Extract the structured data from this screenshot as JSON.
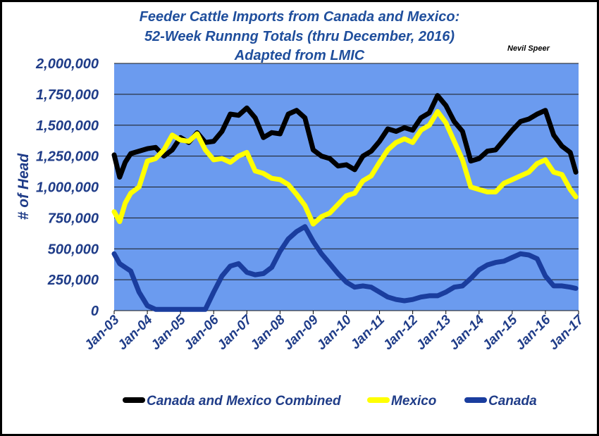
{
  "chart_data": {
    "type": "line",
    "title": [
      "Feeder Cattle Imports from Canada and Mexico:",
      "52-Week Runnng Totals (thru December, 2016)",
      "Adapted from LMIC"
    ],
    "author": "Nevil Speer",
    "ylabel": "# of Head",
    "xlabel": "",
    "ylim": [
      0,
      2000000
    ],
    "yticks": [
      "0",
      "250,000",
      "500,000",
      "750,000",
      "1,000,000",
      "1,250,000",
      "1,500,000",
      "1,750,000",
      "2,000,000"
    ],
    "xlim": [
      2003,
      2017
    ],
    "xticks": [
      "Jan-03",
      "Jan-04",
      "Jan-05",
      "Jan-06",
      "Jan-07",
      "Jan-08",
      "Jan-09",
      "Jan-10",
      "Jan-11",
      "Jan-12",
      "Jan-13",
      "Jan-14",
      "Jan-15",
      "Jan-16",
      "Jan-17"
    ],
    "grid": true,
    "legend_position": "bottom",
    "colors": {
      "plot_background": "#6b9bef",
      "grid": "#1a1a1a",
      "text": "#1f3c88",
      "title": "#1f4e9c"
    },
    "series": [
      {
        "name": "Canada and Mexico Combined",
        "color": "#000000",
        "x": [
          "Jan-03",
          "Mar-03",
          "May-03",
          "Jul-03",
          "Oct-03",
          "Jan-04",
          "Apr-04",
          "Jul-04",
          "Oct-04",
          "Jan-05",
          "Apr-05",
          "Jul-05",
          "Oct-05",
          "Jan-06",
          "Apr-06",
          "Jul-06",
          "Oct-06",
          "Jan-07",
          "Apr-07",
          "Jul-07",
          "Oct-07",
          "Jan-08",
          "Apr-08",
          "Jul-08",
          "Oct-08",
          "Jan-09",
          "Apr-09",
          "Jul-09",
          "Oct-09",
          "Jan-10",
          "Apr-10",
          "Jul-10",
          "Oct-10",
          "Jan-11",
          "Apr-11",
          "Jul-11",
          "Oct-11",
          "Jan-12",
          "Apr-12",
          "Jul-12",
          "Oct-12",
          "Jan-13",
          "Apr-13",
          "Jul-13",
          "Oct-13",
          "Jan-14",
          "Apr-14",
          "Jul-14",
          "Oct-14",
          "Jan-15",
          "Apr-15",
          "Jul-15",
          "Oct-15",
          "Jan-16",
          "Apr-16",
          "Jul-16",
          "Oct-16",
          "Dec-16"
        ],
        "values": [
          1260000,
          1080000,
          1200000,
          1270000,
          1290000,
          1310000,
          1320000,
          1250000,
          1300000,
          1400000,
          1360000,
          1440000,
          1360000,
          1370000,
          1450000,
          1590000,
          1580000,
          1640000,
          1560000,
          1400000,
          1440000,
          1430000,
          1590000,
          1620000,
          1560000,
          1300000,
          1250000,
          1230000,
          1170000,
          1180000,
          1140000,
          1250000,
          1290000,
          1370000,
          1470000,
          1450000,
          1480000,
          1460000,
          1560000,
          1600000,
          1740000,
          1660000,
          1530000,
          1450000,
          1210000,
          1230000,
          1290000,
          1300000,
          1380000,
          1460000,
          1530000,
          1550000,
          1590000,
          1620000,
          1420000,
          1330000,
          1280000,
          1120000
        ]
      },
      {
        "name": "Mexico",
        "color": "#ffff00",
        "x": [
          "Jan-03",
          "Mar-03",
          "May-03",
          "Jul-03",
          "Oct-03",
          "Jan-04",
          "Apr-04",
          "Jul-04",
          "Oct-04",
          "Jan-05",
          "Apr-05",
          "Jul-05",
          "Oct-05",
          "Jan-06",
          "Apr-06",
          "Jul-06",
          "Oct-06",
          "Jan-07",
          "Apr-07",
          "Jul-07",
          "Oct-07",
          "Jan-08",
          "Apr-08",
          "Jul-08",
          "Oct-08",
          "Jan-09",
          "Apr-09",
          "Jul-09",
          "Oct-09",
          "Jan-10",
          "Apr-10",
          "Jul-10",
          "Oct-10",
          "Jan-11",
          "Apr-11",
          "Jul-11",
          "Oct-11",
          "Jan-12",
          "Apr-12",
          "Jul-12",
          "Oct-12",
          "Jan-13",
          "Apr-13",
          "Jul-13",
          "Oct-13",
          "Jan-14",
          "Apr-14",
          "Jul-14",
          "Oct-14",
          "Jan-15",
          "Apr-15",
          "Jul-15",
          "Oct-15",
          "Jan-16",
          "Apr-16",
          "Jul-16",
          "Oct-16",
          "Dec-16"
        ],
        "values": [
          800000,
          720000,
          870000,
          950000,
          1000000,
          1210000,
          1230000,
          1300000,
          1420000,
          1380000,
          1370000,
          1430000,
          1300000,
          1220000,
          1230000,
          1200000,
          1250000,
          1280000,
          1130000,
          1110000,
          1070000,
          1060000,
          1020000,
          940000,
          850000,
          700000,
          760000,
          790000,
          860000,
          930000,
          950000,
          1050000,
          1090000,
          1200000,
          1300000,
          1360000,
          1390000,
          1360000,
          1460000,
          1500000,
          1610000,
          1520000,
          1370000,
          1220000,
          1000000,
          980000,
          960000,
          960000,
          1030000,
          1060000,
          1090000,
          1120000,
          1190000,
          1220000,
          1120000,
          1100000,
          980000,
          920000
        ]
      },
      {
        "name": "Canada",
        "color": "#1a3d9e",
        "x": [
          "Jan-03",
          "Mar-03",
          "May-03",
          "Jul-03",
          "Oct-03",
          "Jan-04",
          "Apr-04",
          "Jul-04",
          "Oct-04",
          "Jan-05",
          "Apr-05",
          "Jul-05",
          "Oct-05",
          "Jan-06",
          "Apr-06",
          "Jul-06",
          "Oct-06",
          "Jan-07",
          "Apr-07",
          "Jul-07",
          "Oct-07",
          "Jan-08",
          "Apr-08",
          "Jul-08",
          "Oct-08",
          "Jan-09",
          "Apr-09",
          "Jul-09",
          "Oct-09",
          "Jan-10",
          "Apr-10",
          "Jul-10",
          "Oct-10",
          "Jan-11",
          "Apr-11",
          "Jul-11",
          "Oct-11",
          "Jan-12",
          "Apr-12",
          "Jul-12",
          "Oct-12",
          "Jan-13",
          "Apr-13",
          "Jul-13",
          "Oct-13",
          "Jan-14",
          "Apr-14",
          "Jul-14",
          "Oct-14",
          "Jan-15",
          "Apr-15",
          "Jul-15",
          "Oct-15",
          "Jan-16",
          "Apr-16",
          "Jul-16",
          "Oct-16",
          "Dec-16"
        ],
        "values": [
          460000,
          380000,
          350000,
          320000,
          150000,
          40000,
          10000,
          10000,
          10000,
          10000,
          10000,
          10000,
          10000,
          150000,
          280000,
          360000,
          380000,
          310000,
          290000,
          300000,
          350000,
          480000,
          580000,
          640000,
          680000,
          560000,
          460000,
          380000,
          300000,
          230000,
          190000,
          200000,
          190000,
          150000,
          110000,
          90000,
          80000,
          90000,
          110000,
          120000,
          120000,
          150000,
          190000,
          200000,
          260000,
          330000,
          370000,
          390000,
          400000,
          430000,
          460000,
          450000,
          420000,
          280000,
          200000,
          200000,
          190000,
          180000
        ]
      }
    ]
  }
}
